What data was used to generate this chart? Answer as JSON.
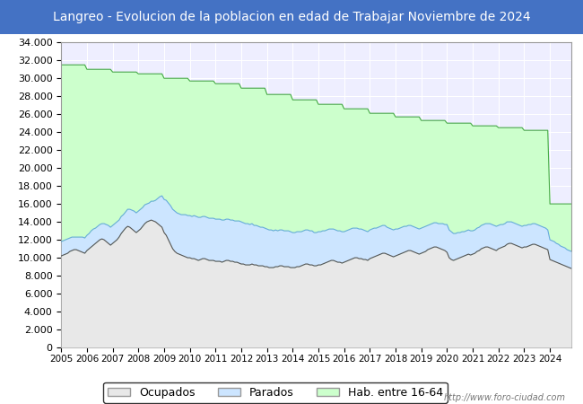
{
  "title": "Langreo - Evolucion de la poblacion en edad de Trabajar Noviembre de 2024",
  "title_bg_color": "#4472c4",
  "title_text_color": "#ffffff",
  "title_fontsize": 10,
  "ylim": [
    0,
    34000
  ],
  "ytick_step": 2000,
  "plot_bg_color": "#eeeeff",
  "grid_color": "#ffffff",
  "hab_color": "#ccffcc",
  "hab_line_color": "#44aa44",
  "parados_color": "#cce5ff",
  "parados_line_color": "#66aadd",
  "ocupados_color": "#e8e8e8",
  "ocupados_line_color": "#555555",
  "footer_text": "http://www.foro-ciudad.com",
  "legend_labels": [
    "Ocupados",
    "Parados",
    "Hab. entre 16-64"
  ],
  "hab_steps": [
    31500,
    31500,
    31500,
    31500,
    31500,
    31500,
    31500,
    31500,
    31500,
    31500,
    31500,
    31500,
    31000,
    31000,
    31000,
    31000,
    31000,
    31000,
    31000,
    31000,
    31000,
    31000,
    31000,
    31000,
    30700,
    30700,
    30700,
    30700,
    30700,
    30700,
    30700,
    30700,
    30700,
    30700,
    30700,
    30700,
    30500,
    30500,
    30500,
    30500,
    30500,
    30500,
    30500,
    30500,
    30500,
    30500,
    30500,
    30500,
    30000,
    30000,
    30000,
    30000,
    30000,
    30000,
    30000,
    30000,
    30000,
    30000,
    30000,
    30000,
    29700,
    29700,
    29700,
    29700,
    29700,
    29700,
    29700,
    29700,
    29700,
    29700,
    29700,
    29700,
    29400,
    29400,
    29400,
    29400,
    29400,
    29400,
    29400,
    29400,
    29400,
    29400,
    29400,
    29400,
    28900,
    28900,
    28900,
    28900,
    28900,
    28900,
    28900,
    28900,
    28900,
    28900,
    28900,
    28900,
    28200,
    28200,
    28200,
    28200,
    28200,
    28200,
    28200,
    28200,
    28200,
    28200,
    28200,
    28200,
    27600,
    27600,
    27600,
    27600,
    27600,
    27600,
    27600,
    27600,
    27600,
    27600,
    27600,
    27600,
    27100,
    27100,
    27100,
    27100,
    27100,
    27100,
    27100,
    27100,
    27100,
    27100,
    27100,
    27100,
    26600,
    26600,
    26600,
    26600,
    26600,
    26600,
    26600,
    26600,
    26600,
    26600,
    26600,
    26600,
    26100,
    26100,
    26100,
    26100,
    26100,
    26100,
    26100,
    26100,
    26100,
    26100,
    26100,
    26100,
    25700,
    25700,
    25700,
    25700,
    25700,
    25700,
    25700,
    25700,
    25700,
    25700,
    25700,
    25700,
    25300,
    25300,
    25300,
    25300,
    25300,
    25300,
    25300,
    25300,
    25300,
    25300,
    25300,
    25300,
    25000,
    25000,
    25000,
    25000,
    25000,
    25000,
    25000,
    25000,
    25000,
    25000,
    25000,
    25000,
    24700,
    24700,
    24700,
    24700,
    24700,
    24700,
    24700,
    24700,
    24700,
    24700,
    24700,
    24700,
    24500,
    24500,
    24500,
    24500,
    24500,
    24500,
    24500,
    24500,
    24500,
    24500,
    24500,
    24500,
    24200,
    24200,
    24200,
    24200,
    24200,
    24200,
    24200,
    24200,
    24200,
    24200,
    24200,
    24200,
    16000,
    16000,
    16000,
    16000,
    16000,
    16000,
    16000,
    16000,
    16000,
    16000,
    16000
  ],
  "ocupados_monthly": [
    10200,
    10300,
    10400,
    10500,
    10700,
    10800,
    10900,
    10900,
    10800,
    10700,
    10600,
    10500,
    10800,
    11000,
    11200,
    11400,
    11600,
    11800,
    12000,
    12100,
    12000,
    11800,
    11600,
    11400,
    11600,
    11800,
    12000,
    12300,
    12700,
    13000,
    13300,
    13500,
    13400,
    13200,
    13000,
    12800,
    13000,
    13200,
    13500,
    13800,
    14000,
    14100,
    14200,
    14100,
    14000,
    13800,
    13600,
    13400,
    12800,
    12500,
    12000,
    11500,
    11000,
    10700,
    10500,
    10400,
    10300,
    10200,
    10100,
    10000,
    10000,
    9900,
    9900,
    9800,
    9700,
    9800,
    9900,
    9900,
    9800,
    9700,
    9700,
    9700,
    9600,
    9600,
    9600,
    9500,
    9600,
    9700,
    9700,
    9600,
    9600,
    9500,
    9500,
    9400,
    9300,
    9300,
    9200,
    9200,
    9200,
    9300,
    9200,
    9200,
    9100,
    9100,
    9100,
    9000,
    9000,
    8900,
    8900,
    8900,
    9000,
    9000,
    9100,
    9100,
    9000,
    9000,
    9000,
    8900,
    8900,
    8900,
    9000,
    9000,
    9100,
    9200,
    9300,
    9300,
    9200,
    9200,
    9100,
    9100,
    9200,
    9200,
    9300,
    9400,
    9500,
    9600,
    9700,
    9700,
    9600,
    9500,
    9500,
    9400,
    9500,
    9600,
    9700,
    9800,
    9900,
    10000,
    10000,
    9900,
    9900,
    9800,
    9800,
    9700,
    9900,
    10000,
    10100,
    10200,
    10300,
    10400,
    10500,
    10500,
    10400,
    10300,
    10200,
    10100,
    10200,
    10300,
    10400,
    10500,
    10600,
    10700,
    10800,
    10800,
    10700,
    10600,
    10500,
    10400,
    10500,
    10600,
    10700,
    10900,
    11000,
    11100,
    11200,
    11200,
    11100,
    11000,
    10900,
    10800,
    10600,
    10000,
    9800,
    9700,
    9800,
    9900,
    10000,
    10100,
    10200,
    10300,
    10400,
    10300,
    10400,
    10500,
    10700,
    10800,
    11000,
    11100,
    11200,
    11200,
    11100,
    11000,
    10900,
    10800,
    11000,
    11100,
    11200,
    11300,
    11500,
    11600,
    11600,
    11500,
    11400,
    11300,
    11200,
    11100,
    11200,
    11200,
    11300,
    11400,
    11500,
    11500,
    11400,
    11300,
    11200,
    11100,
    11000,
    10900,
    9800,
    9700,
    9600,
    9500,
    9400,
    9300,
    9200,
    9100,
    9000,
    8900,
    8800
  ],
  "parados_monthly": [
    1600,
    1600,
    1600,
    1600,
    1500,
    1500,
    1400,
    1400,
    1500,
    1600,
    1700,
    1700,
    1700,
    1700,
    1800,
    1800,
    1700,
    1700,
    1700,
    1700,
    1800,
    1900,
    2000,
    2000,
    2000,
    2000,
    2000,
    1900,
    1900,
    1800,
    1800,
    1900,
    2000,
    2100,
    2200,
    2200,
    2200,
    2200,
    2100,
    2100,
    2000,
    2000,
    2100,
    2200,
    2400,
    2800,
    3200,
    3500,
    3700,
    3900,
    4100,
    4300,
    4400,
    4500,
    4500,
    4500,
    4500,
    4600,
    4700,
    4700,
    4700,
    4700,
    4800,
    4800,
    4800,
    4700,
    4700,
    4700,
    4700,
    4700,
    4700,
    4700,
    4700,
    4700,
    4700,
    4700,
    4600,
    4600,
    4600,
    4600,
    4600,
    4600,
    4600,
    4700,
    4700,
    4600,
    4600,
    4600,
    4500,
    4500,
    4400,
    4400,
    4400,
    4300,
    4300,
    4300,
    4200,
    4200,
    4200,
    4100,
    4100,
    4000,
    4000,
    4000,
    4000,
    4000,
    4000,
    4000,
    3900,
    3900,
    3900,
    3900,
    3800,
    3800,
    3800,
    3800,
    3800,
    3800,
    3700,
    3700,
    3700,
    3700,
    3700,
    3600,
    3600,
    3600,
    3500,
    3500,
    3500,
    3500,
    3500,
    3500,
    3400,
    3400,
    3400,
    3400,
    3400,
    3300,
    3300,
    3300,
    3300,
    3300,
    3200,
    3200,
    3200,
    3200,
    3200,
    3100,
    3100,
    3100,
    3100,
    3100,
    3000,
    3000,
    3000,
    3000,
    3000,
    2900,
    2900,
    2900,
    2900,
    2800,
    2800,
    2800,
    2800,
    2800,
    2800,
    2800,
    2800,
    2800,
    2800,
    2700,
    2700,
    2700,
    2700,
    2700,
    2700,
    2800,
    2900,
    2900,
    3100,
    3100,
    3100,
    3000,
    2900,
    2900,
    2800,
    2800,
    2700,
    2700,
    2700,
    2700,
    2600,
    2600,
    2600,
    2600,
    2600,
    2600,
    2600,
    2600,
    2700,
    2700,
    2700,
    2700,
    2600,
    2600,
    2500,
    2500,
    2500,
    2400,
    2400,
    2400,
    2400,
    2400,
    2400,
    2400,
    2400,
    2400,
    2400,
    2300,
    2300,
    2300,
    2300,
    2300,
    2300,
    2300,
    2300,
    2200,
    2200,
    2200,
    2200,
    2100,
    2100,
    2000,
    2000,
    2000,
    1900,
    1900,
    1900
  ]
}
